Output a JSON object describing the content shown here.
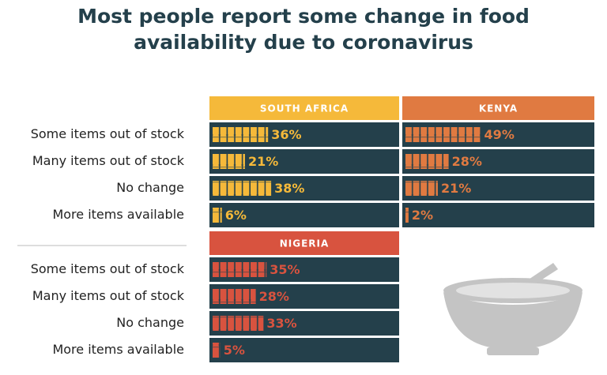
{
  "title": "Most people report some change in food availability due to coronavirus",
  "chart_data": [
    {
      "type": "bar",
      "title": "SOUTH AFRICA",
      "color": "#f5b93a",
      "categories": [
        "Some items out of stock",
        "Many items out of stock",
        "No change",
        "More items available"
      ],
      "values": [
        36,
        21,
        38,
        6
      ],
      "value_labels": [
        "36%",
        "21%",
        "38%",
        "6%"
      ]
    },
    {
      "type": "bar",
      "title": "KENYA",
      "color": "#e07a41",
      "values": [
        49,
        28,
        21,
        2
      ],
      "value_labels": [
        "49%",
        "28%",
        "21%",
        "2%"
      ]
    },
    {
      "type": "bar",
      "title": "NIGERIA",
      "color": "#d8533f",
      "categories": [
        "Some items out of stock",
        "Many items out of stock",
        "No change",
        "More items available"
      ],
      "values": [
        35,
        28,
        33,
        5
      ],
      "value_labels": [
        "35%",
        "28%",
        "33%",
        "5%"
      ]
    }
  ]
}
